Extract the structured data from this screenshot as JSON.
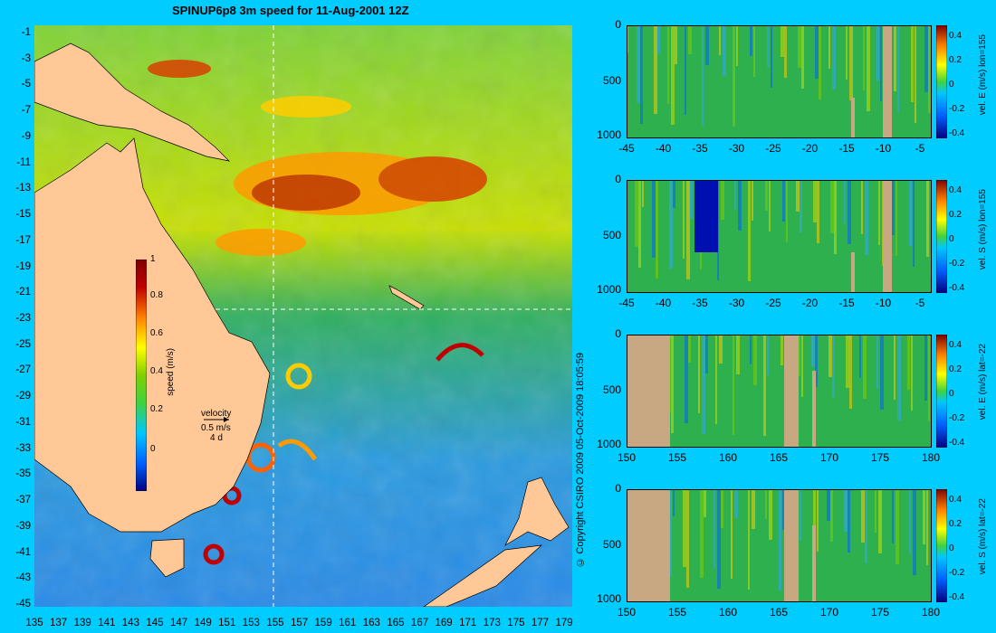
{
  "title": "SPINUP6p8 3m speed for 11-Aug-2001 12Z",
  "copyright": "© Copyright CSIRO 2009   05-Oct-2009 18:05:59",
  "map": {
    "lat_labels": [
      "-1",
      "-3",
      "-5",
      "-7",
      "-9",
      "-11",
      "-13",
      "-15",
      "-17",
      "-19",
      "-21",
      "-23",
      "-25",
      "-27",
      "-29",
      "-31",
      "-33",
      "-35",
      "-37",
      "-39",
      "-41",
      "-43",
      "-45"
    ],
    "lon_labels": [
      "135",
      "137",
      "139",
      "141",
      "143",
      "145",
      "147",
      "149",
      "151",
      "153",
      "155",
      "157",
      "159",
      "161",
      "163",
      "165",
      "167",
      "169",
      "171",
      "173",
      "175",
      "177",
      "179"
    ],
    "colorbar_label": "speed (m/s)",
    "colorbar_ticks": [
      "1",
      "0.8",
      "0.6",
      "0.4",
      "0.2",
      "0"
    ],
    "colorbar_colors": [
      "#00007f",
      "#0060ff",
      "#00c8ff",
      "#3fd23f",
      "#7fd000",
      "#ffff00",
      "#ff8000",
      "#c00000",
      "#7f0000"
    ],
    "velocity_key": {
      "title": "velocity",
      "speed": "0.5 m/s",
      "time": "4 d"
    },
    "section_lines": {
      "lon": 155,
      "lat": -22
    }
  },
  "panels": [
    {
      "id": "p1",
      "label": "vel. E (m/s) lon=155",
      "x_labels": [
        "-45",
        "-40",
        "-35",
        "-30",
        "-25",
        "-20",
        "-15",
        "-10",
        "-5"
      ],
      "y_labels": [
        "0",
        "500",
        "1000"
      ],
      "cb_ticks": [
        "0.4",
        "0.2",
        "0",
        "-0.2",
        "-0.4"
      ]
    },
    {
      "id": "p2",
      "label": "vel. S (m/s) lon=155",
      "x_labels": [
        "-45",
        "-40",
        "-35",
        "-30",
        "-25",
        "-20",
        "-15",
        "-10",
        "-5"
      ],
      "y_labels": [
        "0",
        "500",
        "1000"
      ],
      "cb_ticks": [
        "0.4",
        "0.2",
        "0",
        "-0.2",
        "-0.4"
      ]
    },
    {
      "id": "p3",
      "label": "vel. E (m/s) lat=-22",
      "x_labels": [
        "150",
        "155",
        "160",
        "165",
        "170",
        "175",
        "180"
      ],
      "y_labels": [
        "0",
        "500",
        "1000"
      ],
      "cb_ticks": [
        "0.4",
        "0.2",
        "0",
        "-0.2",
        "-0.4"
      ]
    },
    {
      "id": "p4",
      "label": "vel. S (m/s) lat=-22",
      "x_labels": [
        "150",
        "155",
        "160",
        "165",
        "170",
        "175",
        "180"
      ],
      "y_labels": [
        "0",
        "500",
        "1000"
      ],
      "cb_ticks": [
        "0.4",
        "0.2",
        "0",
        "-0.2",
        "-0.4"
      ]
    }
  ],
  "colors": {
    "background": "#00ccff",
    "land": "#ffc896",
    "ocean_field": "#2fb04f",
    "strong": "#c03000",
    "panel_land": "#c8a882"
  }
}
